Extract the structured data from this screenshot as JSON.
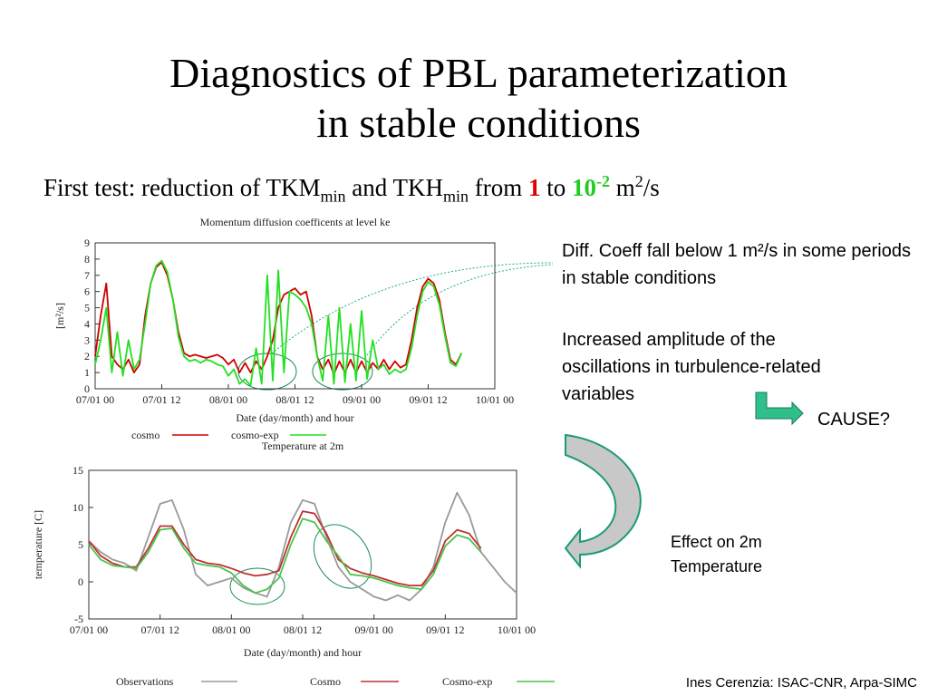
{
  "title_lines": [
    "Diagnostics of PBL parameterization",
    "in stable conditions"
  ],
  "subtitle": [
    "First test: reduction of TKM",
    "min",
    "and TKH",
    "min",
    "from",
    "1",
    "to",
    "10",
    "-2",
    "m",
    "2",
    "/s"
  ],
  "notes": {
    "diff_coeff": "Diff. Coeff fall below 1 m²/s in some periods in stable conditions",
    "amplitude": "Increased amplitude of the oscillations in turbulence-related variables",
    "cause": "CAUSE?",
    "effect": "Effect on 2m Temperature"
  },
  "footer": "Ines Cerenzia: ISAC-CNR, Arpa-SIMC",
  "chart_data": [
    {
      "type": "line",
      "title": "Momentum diffusion coefficents at level ke",
      "x_label": "Date (day/month) and hour",
      "y_label": "[m²/s]",
      "x": [
        0,
        1,
        2,
        3,
        4,
        5,
        6,
        7,
        8,
        9,
        10,
        11,
        12,
        13,
        14,
        15,
        16,
        17,
        18,
        19,
        20,
        21,
        22,
        23,
        24,
        25,
        26,
        27,
        28,
        29,
        30,
        31,
        32,
        33,
        34,
        35,
        36,
        37,
        38,
        39,
        40,
        41,
        42,
        43,
        44,
        45,
        46,
        47,
        48,
        49,
        50,
        51,
        52,
        53,
        54,
        55,
        56,
        57,
        58,
        59,
        60,
        61,
        62,
        63,
        64,
        65,
        66
      ],
      "xlim": [
        0,
        72
      ],
      "xticks": [
        {
          "value": 0,
          "label": "07/01 00"
        },
        {
          "value": 12,
          "label": "07/01 12"
        },
        {
          "value": 24,
          "label": "08/01 00"
        },
        {
          "value": 36,
          "label": "08/01 12"
        },
        {
          "value": 48,
          "label": "09/01 00"
        },
        {
          "value": 60,
          "label": "09/01 12"
        },
        {
          "value": 72,
          "label": "10/01 00"
        }
      ],
      "ylim": [
        0,
        9
      ],
      "yticks": [
        0,
        1,
        2,
        3,
        4,
        5,
        6,
        7,
        8,
        9
      ],
      "series": [
        {
          "name": "cosmo",
          "color": "#d00000",
          "values": [
            2.0,
            4.5,
            6.5,
            2.0,
            1.5,
            1.2,
            1.8,
            1.0,
            1.5,
            4.5,
            6.5,
            7.5,
            7.8,
            7.0,
            5.5,
            3.5,
            2.2,
            2.0,
            2.1,
            2.0,
            1.9,
            2.0,
            2.1,
            1.9,
            1.5,
            1.8,
            1.0,
            1.6,
            1.0,
            1.7,
            1.2,
            2.0,
            3.0,
            5.0,
            5.8,
            6.0,
            6.2,
            5.8,
            6.0,
            4.5,
            2.0,
            1.2,
            1.8,
            0.9,
            1.7,
            1.0,
            1.8,
            1.0,
            1.7,
            1.0,
            1.6,
            1.2,
            1.8,
            1.2,
            1.7,
            1.3,
            1.5,
            3.0,
            5.0,
            6.3,
            6.8,
            6.5,
            5.5,
            3.5,
            1.8,
            1.5,
            2.2
          ]
        },
        {
          "name": "cosmo-exp",
          "color": "#22e022",
          "values": [
            1.5,
            3.0,
            5.0,
            1.0,
            3.5,
            0.8,
            3.0,
            1.2,
            1.8,
            4.0,
            6.5,
            7.6,
            7.9,
            7.2,
            5.5,
            3.2,
            2.0,
            1.7,
            1.8,
            1.6,
            1.8,
            1.7,
            1.5,
            1.4,
            0.8,
            1.2,
            0.3,
            0.6,
            0.2,
            2.5,
            0.3,
            7.0,
            0.5,
            7.3,
            1.0,
            6.0,
            5.8,
            5.5,
            5.0,
            4.0,
            2.0,
            0.5,
            4.5,
            0.3,
            5.0,
            0.4,
            4.0,
            0.5,
            4.8,
            0.6,
            3.0,
            1.2,
            1.5,
            0.9,
            1.2,
            1.0,
            1.2,
            2.5,
            4.5,
            6.0,
            6.6,
            6.3,
            5.2,
            3.3,
            1.6,
            1.4,
            2.2
          ]
        }
      ]
    },
    {
      "type": "line",
      "title": "Temperature at 2m",
      "x_label": "Date (day/month) and hour",
      "y_label": "temperature [C]",
      "x": [
        0,
        2,
        4,
        6,
        8,
        10,
        12,
        14,
        16,
        18,
        20,
        22,
        24,
        26,
        28,
        30,
        32,
        34,
        36,
        38,
        40,
        42,
        44,
        46,
        48,
        50,
        52,
        54,
        56,
        58,
        60,
        62,
        64,
        66,
        68,
        70,
        72
      ],
      "xlim": [
        0,
        72
      ],
      "xticks": [
        {
          "value": 0,
          "label": "07/01 00"
        },
        {
          "value": 12,
          "label": "07/01 12"
        },
        {
          "value": 24,
          "label": "08/01 00"
        },
        {
          "value": 36,
          "label": "08/01 12"
        },
        {
          "value": 48,
          "label": "09/01 00"
        },
        {
          "value": 60,
          "label": "09/01 12"
        },
        {
          "value": 72,
          "label": "10/01 00"
        }
      ],
      "ylim": [
        -5,
        15
      ],
      "yticks": [
        -5,
        0,
        5,
        10,
        15
      ],
      "series": [
        {
          "name": "Observations",
          "color": "#9a9a9a",
          "values": [
            5.5,
            4,
            3,
            2.5,
            1.5,
            6,
            10.5,
            11,
            7,
            1,
            -0.5,
            0,
            0.5,
            -0.8,
            -1.5,
            -2,
            2,
            8,
            11,
            10.5,
            6,
            2,
            0,
            -1,
            -2,
            -2.5,
            -1.8,
            -2.5,
            -1,
            2,
            8,
            12,
            9,
            4,
            2,
            0,
            -1.5
          ]
        },
        {
          "name": "Cosmo",
          "color": "#c03030",
          "values": [
            5.5,
            3.5,
            2.5,
            2.0,
            2.0,
            4.5,
            7.5,
            7.5,
            5,
            3,
            2.5,
            2.3,
            1.8,
            1.2,
            0.8,
            1,
            1.5,
            6,
            9.5,
            9.2,
            6.5,
            3,
            1.8,
            1.2,
            0.8,
            0.3,
            -0.2,
            -0.5,
            -0.5,
            1.5,
            5.5,
            7,
            6.5,
            4.5,
            null,
            null,
            null
          ]
        },
        {
          "name": "Cosmo-exp",
          "color": "#4ec24e",
          "values": [
            5,
            3,
            2.2,
            2,
            1.8,
            4,
            7,
            7.2,
            4.5,
            2.5,
            2.2,
            2,
            1.2,
            -0.5,
            -1.5,
            -1,
            0.5,
            5,
            8.5,
            8,
            5.5,
            3.5,
            1,
            0.8,
            0.5,
            0,
            -0.5,
            -0.8,
            -1,
            1,
            4.8,
            6.3,
            5.8,
            4,
            null,
            null,
            null
          ]
        }
      ]
    }
  ]
}
